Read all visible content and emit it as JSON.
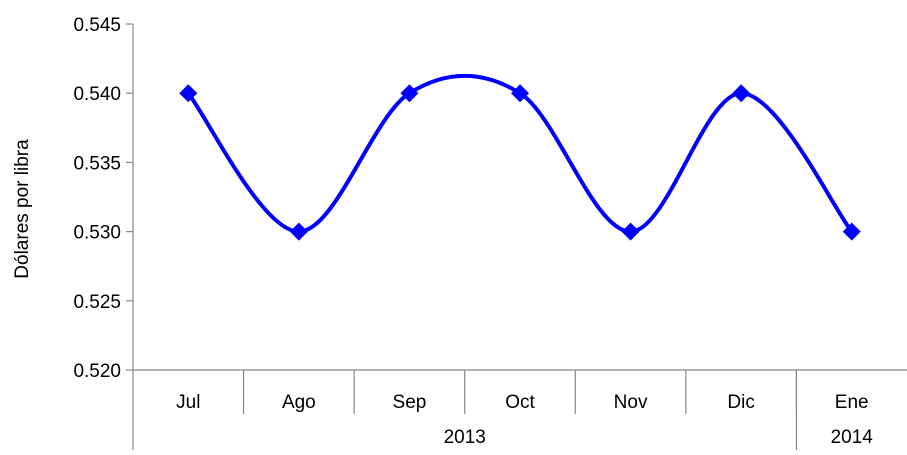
{
  "chart_data": {
    "type": "line",
    "title": "",
    "ylabel": "Dólares por libra",
    "xlabel": "",
    "categories": [
      "Jul",
      "Ago",
      "Sep",
      "Oct",
      "Nov",
      "Dic",
      "Ene"
    ],
    "category_groups": [
      {
        "label": "2013",
        "span": 6
      },
      {
        "label": "2014",
        "span": 1
      }
    ],
    "series": [
      {
        "values": [
          0.54,
          0.53,
          0.54,
          0.54,
          0.53,
          0.54,
          0.53
        ],
        "color": "#0000ff",
        "marker": "diamond",
        "smooth": true
      }
    ],
    "ylim": [
      0.52,
      0.545
    ],
    "yticks": [
      "0.520",
      "0.525",
      "0.530",
      "0.535",
      "0.540",
      "0.545"
    ],
    "grid": false,
    "legend": "none"
  }
}
